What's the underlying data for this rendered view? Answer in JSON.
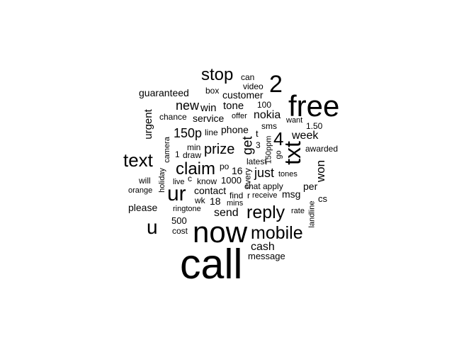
{
  "words": [
    {
      "text": "call",
      "freq": 365
    },
    {
      "text": "now",
      "freq": 189
    },
    {
      "text": "free",
      "freq": 180
    },
    {
      "text": "2",
      "freq": 160
    },
    {
      "text": "txt",
      "freq": 150
    },
    {
      "text": "ur",
      "freq": 144
    },
    {
      "text": "u",
      "freq": 140
    },
    {
      "text": "text",
      "freq": 120
    },
    {
      "text": "mobile",
      "freq": 120
    },
    {
      "text": "reply",
      "freq": 120
    },
    {
      "text": "stop",
      "freq": 115
    },
    {
      "text": "claim",
      "freq": 110
    },
    {
      "text": "4",
      "freq": 105
    },
    {
      "text": "prize",
      "freq": 90
    },
    {
      "text": "get",
      "freq": 80
    },
    {
      "text": "150p",
      "freq": 75
    },
    {
      "text": "new",
      "freq": 70
    },
    {
      "text": "just",
      "freq": 70
    },
    {
      "text": "won",
      "freq": 68
    },
    {
      "text": "week",
      "freq": 65
    },
    {
      "text": "cash",
      "freq": 62
    },
    {
      "text": "send",
      "freq": 62
    },
    {
      "text": "nokia",
      "freq": 62
    },
    {
      "text": "urgent",
      "freq": 60
    },
    {
      "text": "win",
      "freq": 58
    },
    {
      "text": "tone",
      "freq": 56
    },
    {
      "text": "service",
      "freq": 50
    },
    {
      "text": "customer",
      "freq": 48
    },
    {
      "text": "guaranteed",
      "freq": 48
    },
    {
      "text": "please",
      "freq": 45
    },
    {
      "text": "contact",
      "freq": 45
    },
    {
      "text": "phone",
      "freq": 45
    },
    {
      "text": "500",
      "freq": 44
    },
    {
      "text": "message",
      "freq": 44
    },
    {
      "text": "per",
      "freq": 44
    },
    {
      "text": "msg",
      "freq": 44
    },
    {
      "text": "16",
      "freq": 42
    },
    {
      "text": "18",
      "freq": 42
    },
    {
      "text": "1000",
      "freq": 42
    },
    {
      "text": "box",
      "freq": 38
    },
    {
      "text": "video",
      "freq": 38
    },
    {
      "text": "can",
      "freq": 36
    },
    {
      "text": "chance",
      "freq": 36
    },
    {
      "text": "offer",
      "freq": 34
    },
    {
      "text": "100",
      "freq": 36
    },
    {
      "text": "line",
      "freq": 36
    },
    {
      "text": "sms",
      "freq": 36
    },
    {
      "text": "want",
      "freq": 34
    },
    {
      "text": "1.50",
      "freq": 34
    },
    {
      "text": "min",
      "freq": 34
    },
    {
      "text": "camera",
      "freq": 32
    },
    {
      "text": "1",
      "freq": 38
    },
    {
      "text": "draw",
      "freq": 36
    },
    {
      "text": "po",
      "freq": 36
    },
    {
      "text": "latest",
      "freq": 36
    },
    {
      "text": "every",
      "freq": 36
    },
    {
      "text": "t",
      "freq": 40
    },
    {
      "text": "3",
      "freq": 38
    },
    {
      "text": "150ppm",
      "freq": 32
    },
    {
      "text": "go",
      "freq": 32
    },
    {
      "text": "awarded",
      "freq": 38
    },
    {
      "text": "tones",
      "freq": 36
    },
    {
      "text": "will",
      "freq": 38
    },
    {
      "text": "holiday",
      "freq": 32
    },
    {
      "text": "live",
      "freq": 32
    },
    {
      "text": "c",
      "freq": 34
    },
    {
      "text": "know",
      "freq": 34
    },
    {
      "text": "chat",
      "freq": 36
    },
    {
      "text": "apply",
      "freq": 36
    },
    {
      "text": "orange",
      "freq": 32
    },
    {
      "text": "find",
      "freq": 34
    },
    {
      "text": "r",
      "freq": 34
    },
    {
      "text": "receive",
      "freq": 32
    },
    {
      "text": "wk",
      "freq": 34
    },
    {
      "text": "mins",
      "freq": 32
    },
    {
      "text": "cs",
      "freq": 36
    },
    {
      "text": "ringtone",
      "freq": 32
    },
    {
      "text": "rate",
      "freq": 32
    },
    {
      "text": "landline",
      "freq": 32
    },
    {
      "text": "cost",
      "freq": 34
    }
  ]
}
